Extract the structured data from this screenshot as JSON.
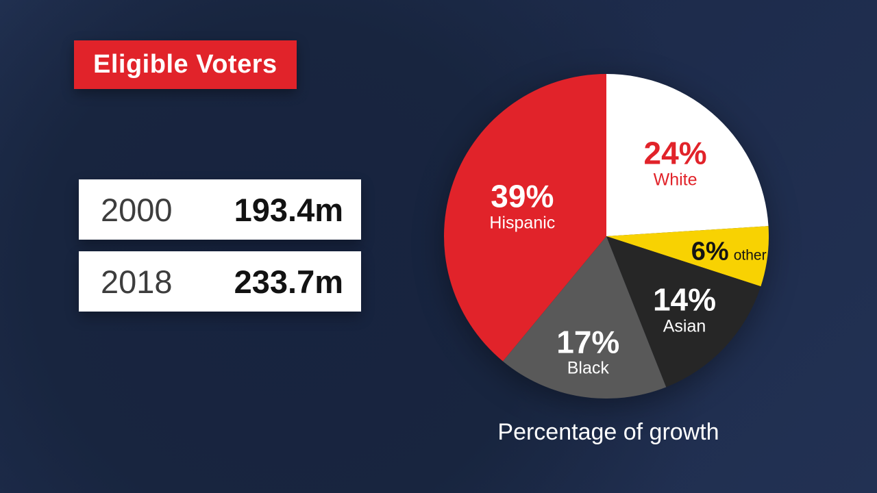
{
  "title": {
    "label": "Eligible Voters"
  },
  "stats": [
    {
      "year": "2000",
      "value": "193.4m"
    },
    {
      "year": "2018",
      "value": "233.7m"
    }
  ],
  "caption": "Percentage of growth",
  "colors": {
    "accent_red": "#e1232a",
    "accent_yellow": "#f8d202",
    "navy_background": "#1d2b4b",
    "bar_white": "#ffffff"
  },
  "chart_data": {
    "type": "pie",
    "title": "Percentage of growth",
    "start_angle_deg": 0,
    "direction": "clockwise",
    "legend_position": "in-slice labels",
    "slices": [
      {
        "label": "White",
        "value": 24,
        "color": "#ffffff",
        "label_color": "#e1232a",
        "label_r": 0.62,
        "inline": false
      },
      {
        "label": "other",
        "value": 6,
        "color": "#f8d202",
        "label_color": "#141414",
        "label_r": 0.76,
        "inline": true
      },
      {
        "label": "Asian",
        "value": 14,
        "color": "#262626",
        "label_color": "#ffffff",
        "label_r": 0.66,
        "inline": false
      },
      {
        "label": "Black",
        "value": 17,
        "color": "#595959",
        "label_color": "#ffffff",
        "label_r": 0.72,
        "inline": false
      },
      {
        "label": "Hispanic",
        "value": 39,
        "color": "#e1232a",
        "label_color": "#ffffff",
        "label_r": 0.55,
        "inline": false
      }
    ]
  }
}
